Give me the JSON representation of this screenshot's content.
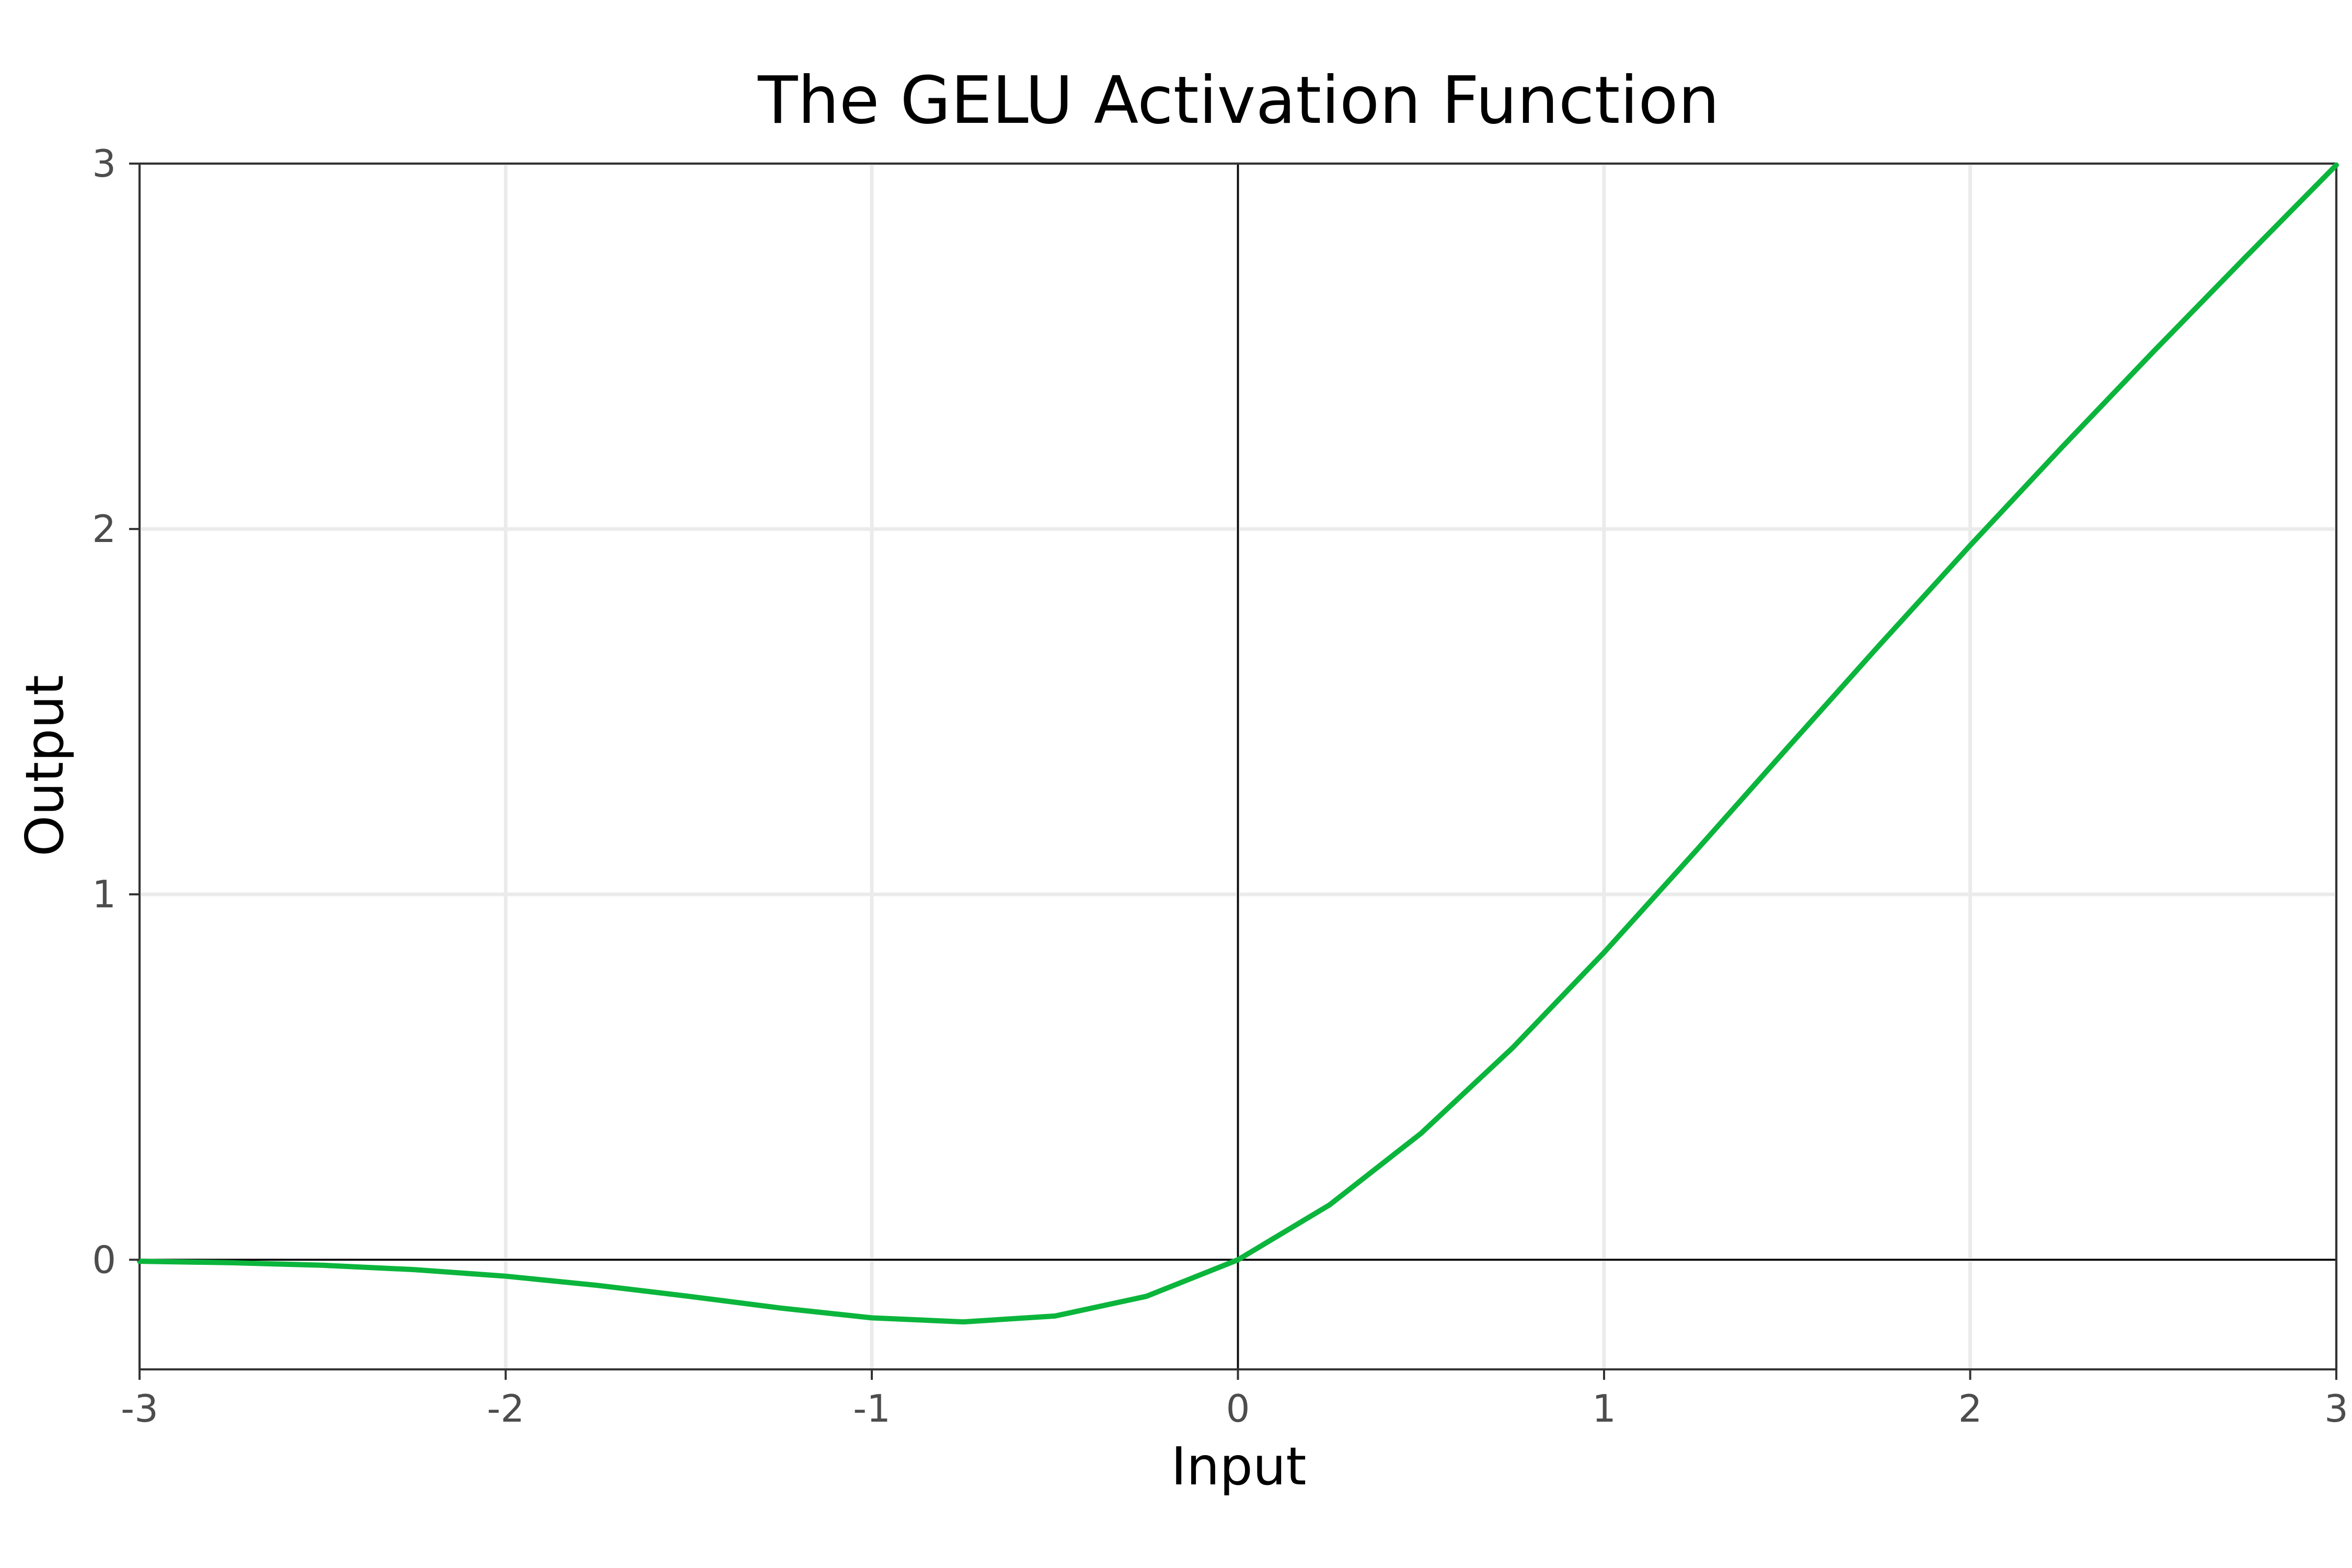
{
  "chart_data": {
    "type": "line",
    "title": "The GELU Activation Function",
    "xlabel": "Input",
    "ylabel": "Output",
    "xlim": [
      -3,
      3
    ],
    "ylim": [
      -0.3,
      3
    ],
    "x_ticks": [
      -3,
      -2,
      -1,
      0,
      1,
      2,
      3
    ],
    "y_ticks": [
      0,
      1,
      2,
      3
    ],
    "grid": true,
    "legend": "none",
    "series": [
      {
        "color": "#0bb53c",
        "x": [
          -3.0,
          -2.75,
          -2.5,
          -2.25,
          -2.0,
          -1.75,
          -1.5,
          -1.25,
          -1.0,
          -0.75,
          -0.5,
          -0.25,
          0.0,
          0.25,
          0.5,
          0.75,
          1.0,
          1.25,
          1.5,
          1.75,
          2.0,
          2.25,
          2.5,
          2.75,
          3.0
        ],
        "y": [
          -0.004,
          -0.008,
          -0.015,
          -0.027,
          -0.045,
          -0.07,
          -0.1,
          -0.132,
          -0.159,
          -0.17,
          -0.154,
          -0.1,
          0.0,
          0.15,
          0.346,
          0.58,
          0.841,
          1.118,
          1.4,
          1.68,
          1.955,
          2.223,
          2.485,
          2.742,
          2.996
        ]
      }
    ]
  }
}
